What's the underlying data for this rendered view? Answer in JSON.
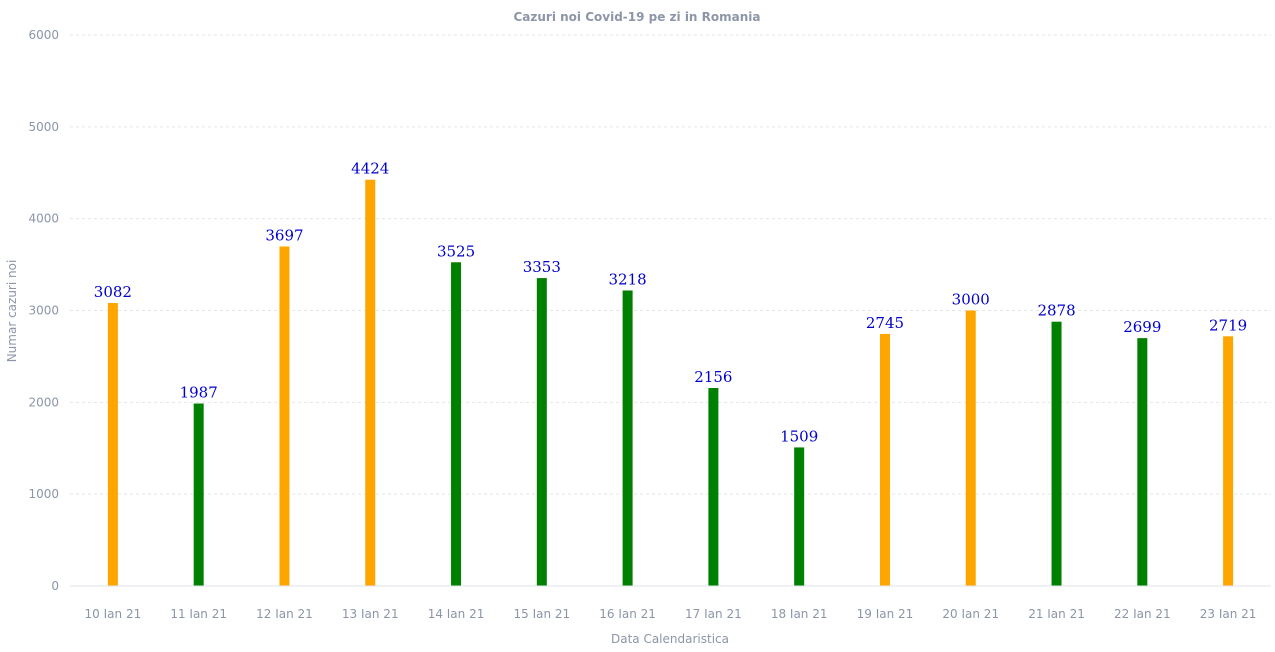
{
  "chart_data": {
    "type": "bar",
    "title": "Cazuri noi Covid-19 pe zi in Romania",
    "xlabel": "Data Calendaristica",
    "ylabel": "Numar cazuri noi",
    "ylim": [
      0,
      6000
    ],
    "yticks": [
      0,
      1000,
      2000,
      3000,
      4000,
      5000,
      6000
    ],
    "grid": true,
    "categories": [
      "10 Ian 21",
      "11 Ian 21",
      "12 Ian 21",
      "13 Ian 21",
      "14 Ian 21",
      "15 Ian 21",
      "16 Ian 21",
      "17 Ian 21",
      "18 Ian 21",
      "19 Ian 21",
      "20 Ian 21",
      "21 Ian 21",
      "22 Ian 21",
      "23 Ian 21"
    ],
    "values": [
      3082,
      1987,
      3697,
      4424,
      3525,
      3353,
      3218,
      2156,
      1509,
      2745,
      3000,
      2878,
      2699,
      2719
    ],
    "colors": [
      "#ffa500",
      "#008000",
      "#ffa500",
      "#ffa500",
      "#008000",
      "#008000",
      "#008000",
      "#008000",
      "#008000",
      "#ffa500",
      "#ffa500",
      "#008000",
      "#008000",
      "#ffa500"
    ],
    "label_color": "#0000cc"
  }
}
